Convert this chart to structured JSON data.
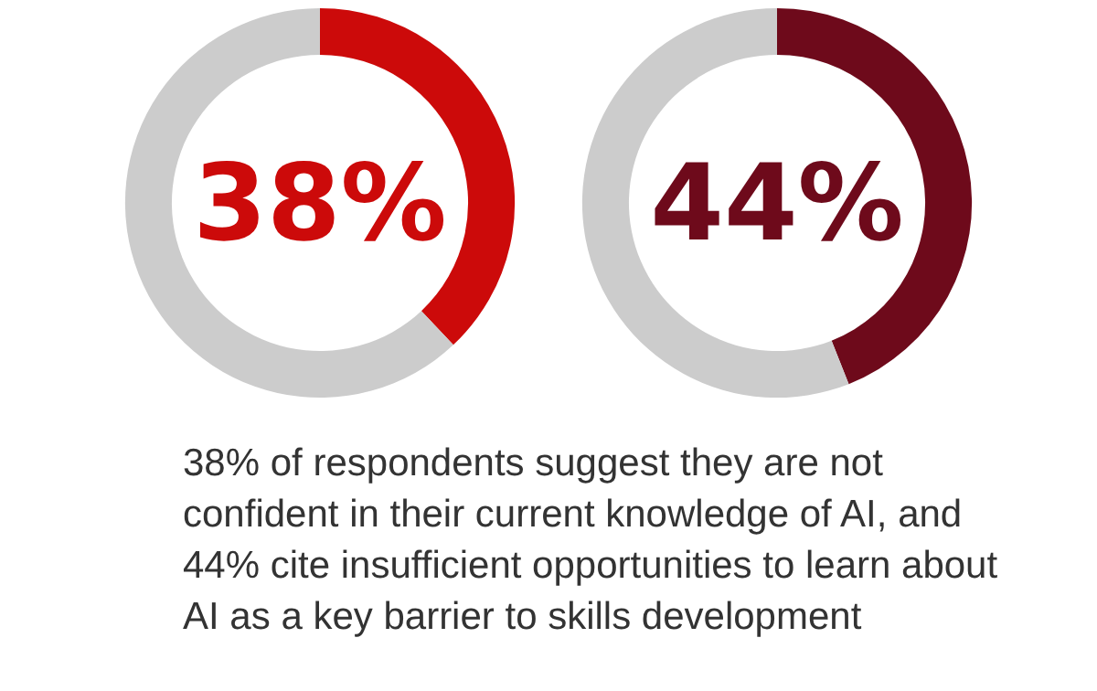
{
  "chart_data": [
    {
      "type": "donut",
      "title": "38%",
      "categories": [
        null,
        null
      ],
      "values": [
        38,
        62
      ],
      "colors": [
        "#cc0a0a",
        "#cccccc"
      ]
    },
    {
      "type": "donut",
      "title": "44%",
      "categories": [
        null,
        null
      ],
      "values": [
        44,
        56
      ],
      "colors": [
        "#6e0a1b",
        "#cccccc"
      ]
    },
    {
      "type": "other",
      "annotations": [
        "38% of respondents suggest they are not confident in their current knowledge of AI, and 44% cite insufficient opportunities to learn about AI as a key barrier to skills development"
      ]
    }
  ]
}
